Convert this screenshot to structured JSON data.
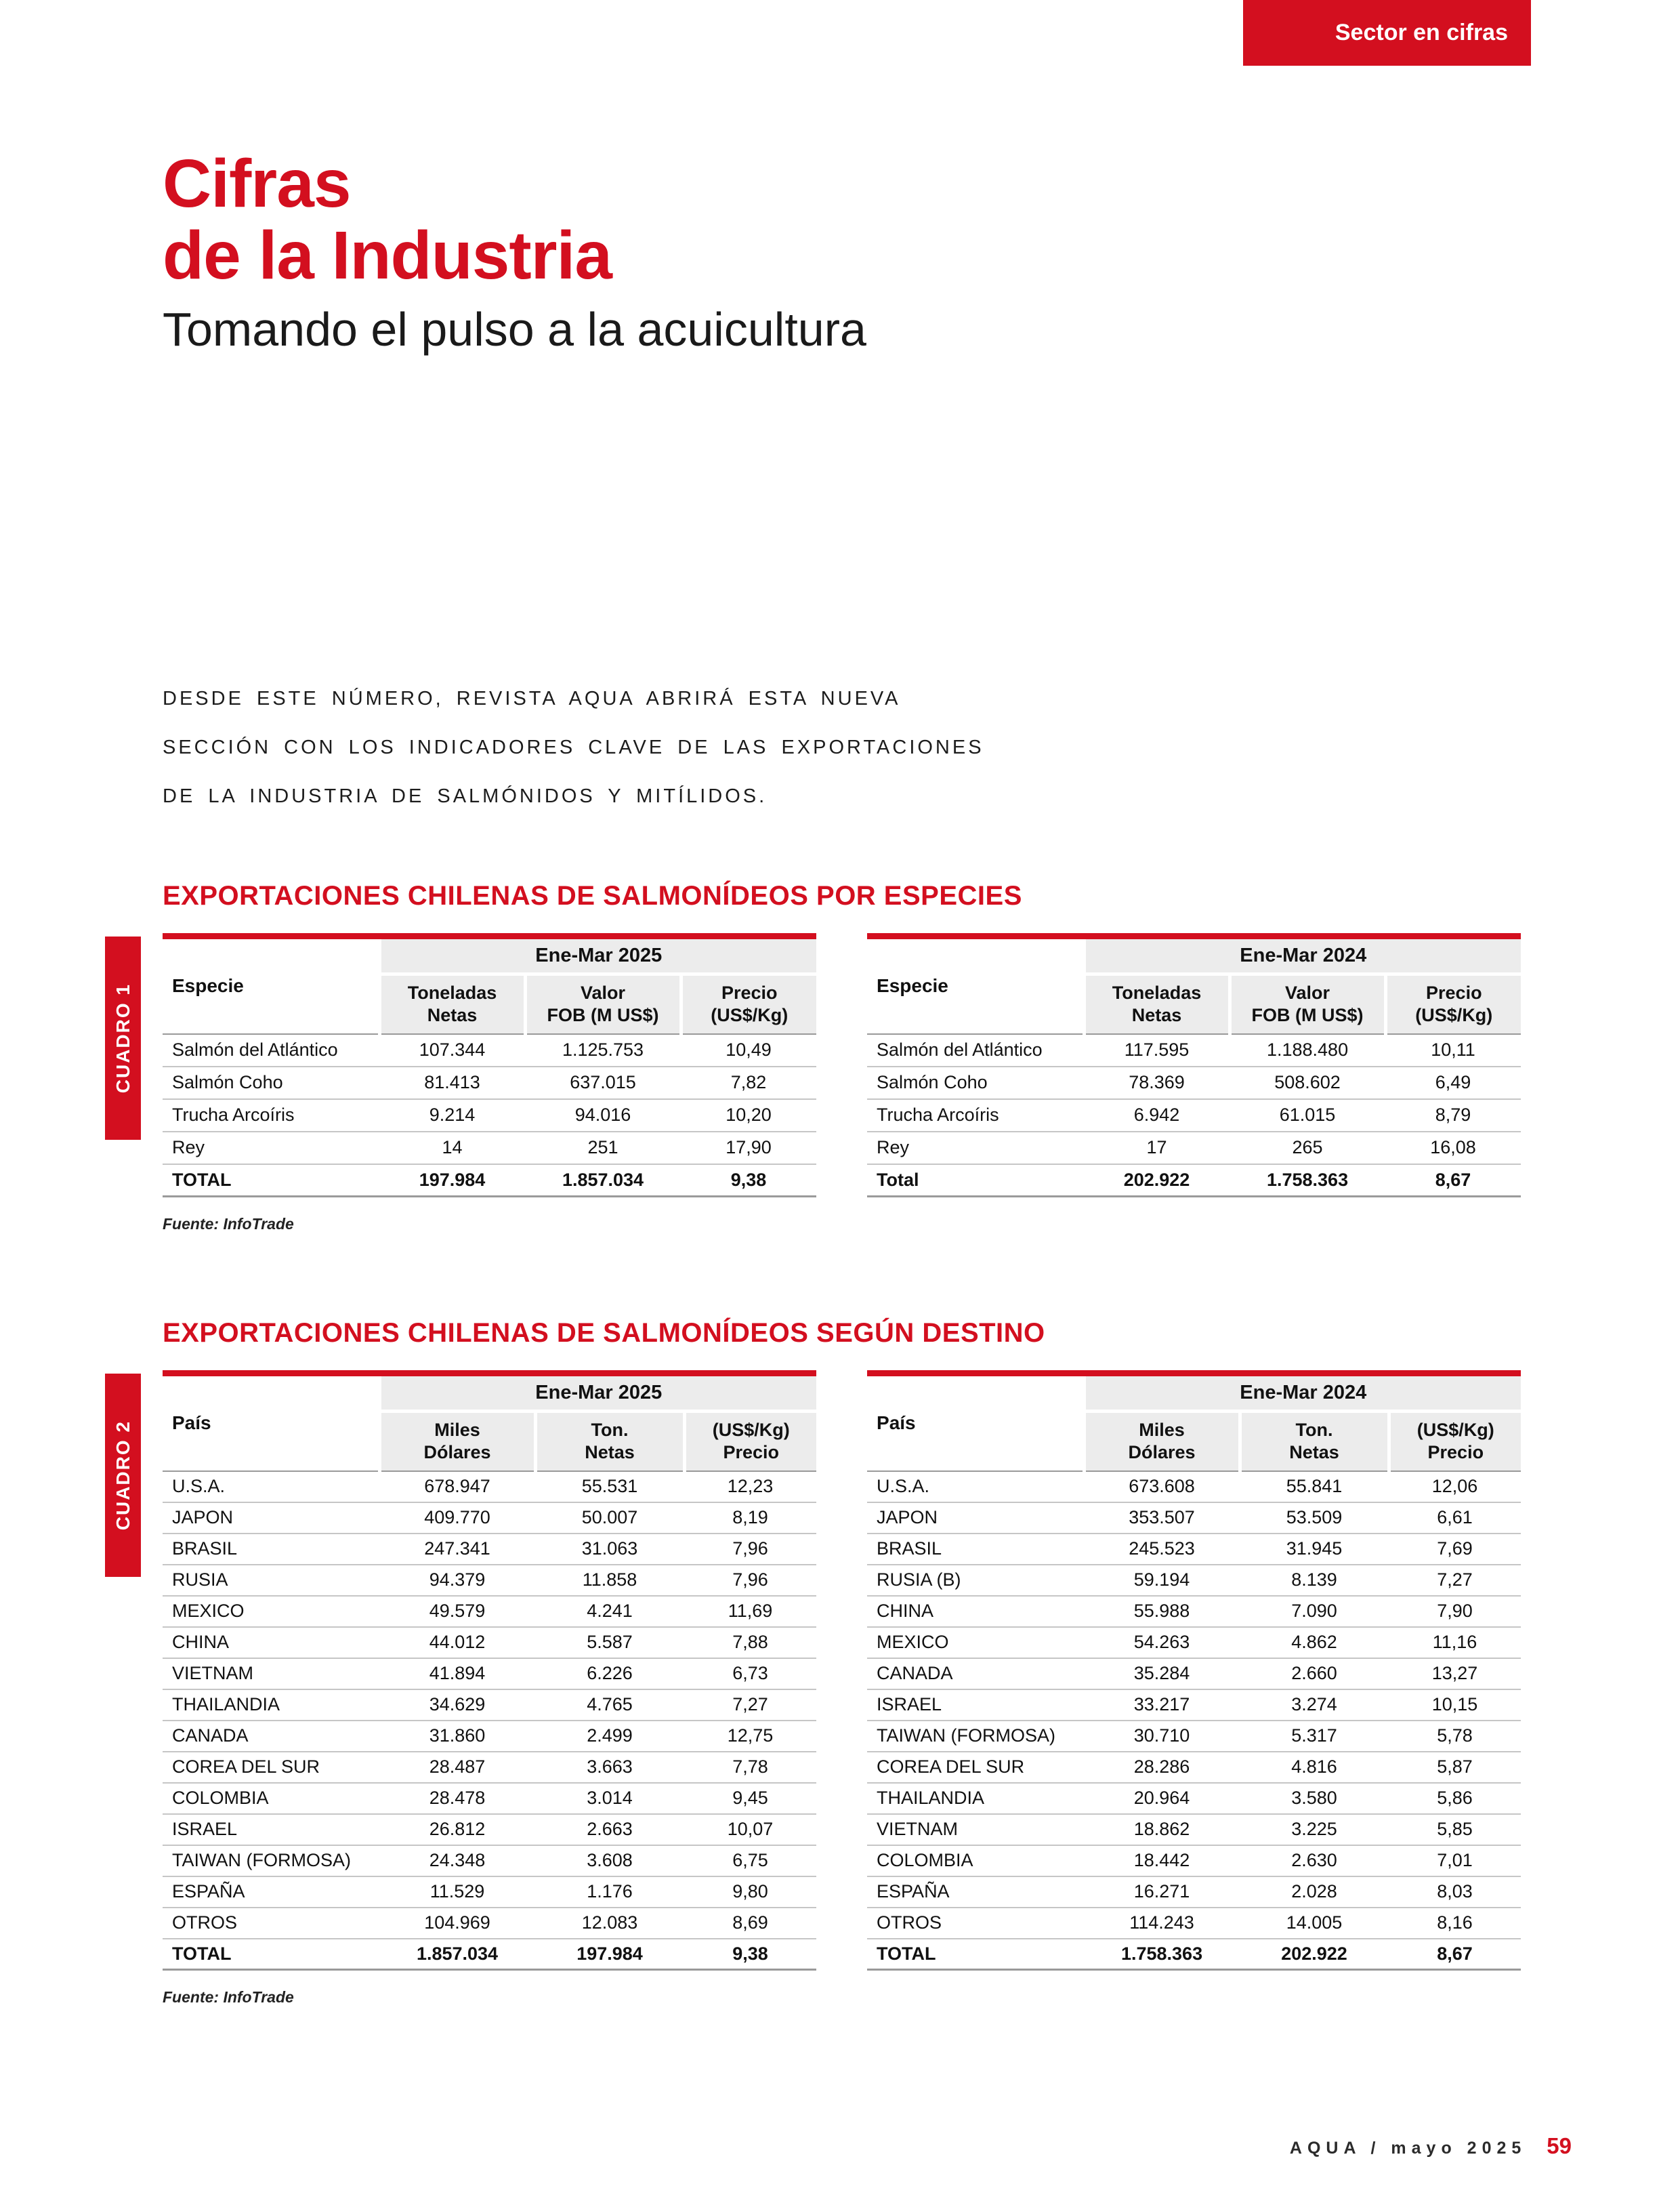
{
  "colors": {
    "accent": "#d30f1f",
    "header_bg": "#ececec"
  },
  "page": {
    "badge": "Sector en cifras",
    "title_line1": "Cifras",
    "title_line2": "de la Industria",
    "subtitle": "Tomando el pulso a la acuicultura",
    "intro_lines": [
      "DESDE ESTE NÚMERO, REVISTA AQUA ABRIRÁ ESTA NUEVA",
      "SECCIÓN CON LOS INDICADORES CLAVE DE LAS EXPORTACIONES",
      "DE LA INDUSTRIA DE SALMÓNIDOS Y MITÍLIDOS."
    ],
    "footer_issue": "AQUA / mayo 2025",
    "footer_page": "59"
  },
  "cuadro1": {
    "tab_label": "CUADRO 1",
    "heading": "EXPORTACIONES CHILENAS DE SALMONÍDEOS POR ESPECIES",
    "source": "Fuente: InfoTrade",
    "tables": [
      {
        "period": "Ene-Mar 2025",
        "label_col": "Especie",
        "columns": [
          "Toneladas\nNetas",
          "Valor\nFOB (M US$)",
          "Precio\n(US$/Kg)"
        ],
        "rows": [
          {
            "cells": [
              "Salmón del Atlántico",
              "107.344",
              "1.125.753",
              "10,49"
            ],
            "bold": false
          },
          {
            "cells": [
              "Salmón Coho",
              "81.413",
              "637.015",
              "7,82"
            ],
            "bold": false
          },
          {
            "cells": [
              "Trucha Arcoíris",
              "9.214",
              "94.016",
              "10,20"
            ],
            "bold": false
          },
          {
            "cells": [
              "Rey",
              "14",
              "251",
              "17,90"
            ],
            "bold": false
          },
          {
            "cells": [
              "TOTAL",
              "197.984",
              "1.857.034",
              "9,38"
            ],
            "bold": true
          }
        ]
      },
      {
        "period": "Ene-Mar 2024",
        "label_col": "Especie",
        "columns": [
          "Toneladas\nNetas",
          "Valor\nFOB (M US$)",
          "Precio\n(US$/Kg)"
        ],
        "rows": [
          {
            "cells": [
              "Salmón del Atlántico",
              "117.595",
              "1.188.480",
              "10,11"
            ],
            "bold": false
          },
          {
            "cells": [
              "Salmón Coho",
              "78.369",
              "508.602",
              "6,49"
            ],
            "bold": false
          },
          {
            "cells": [
              "Trucha Arcoíris",
              "6.942",
              "61.015",
              "8,79"
            ],
            "bold": false
          },
          {
            "cells": [
              "Rey",
              "17",
              "265",
              "16,08"
            ],
            "bold": false
          },
          {
            "cells": [
              "Total",
              "202.922",
              "1.758.363",
              "8,67"
            ],
            "bold": true
          }
        ]
      }
    ]
  },
  "cuadro2": {
    "tab_label": "CUADRO 2",
    "heading": "EXPORTACIONES CHILENAS DE SALMONÍDEOS SEGÚN DESTINO",
    "source": "Fuente: InfoTrade",
    "tables": [
      {
        "period": "Ene-Mar 2025",
        "label_col": "País",
        "columns": [
          "Miles\nDólares",
          "Ton.\nNetas",
          "(US$/Kg)\nPrecio"
        ],
        "rows": [
          {
            "cells": [
              "U.S.A.",
              "678.947",
              "55.531",
              "12,23"
            ],
            "bold": false
          },
          {
            "cells": [
              "JAPON",
              "409.770",
              "50.007",
              "8,19"
            ],
            "bold": false
          },
          {
            "cells": [
              "BRASIL",
              "247.341",
              "31.063",
              "7,96"
            ],
            "bold": false
          },
          {
            "cells": [
              "RUSIA",
              "94.379",
              "11.858",
              "7,96"
            ],
            "bold": false
          },
          {
            "cells": [
              "MEXICO",
              "49.579",
              "4.241",
              "11,69"
            ],
            "bold": false
          },
          {
            "cells": [
              "CHINA",
              "44.012",
              "5.587",
              "7,88"
            ],
            "bold": false
          },
          {
            "cells": [
              "VIETNAM",
              "41.894",
              "6.226",
              "6,73"
            ],
            "bold": false
          },
          {
            "cells": [
              "THAILANDIA",
              "34.629",
              "4.765",
              "7,27"
            ],
            "bold": false
          },
          {
            "cells": [
              "CANADA",
              "31.860",
              "2.499",
              "12,75"
            ],
            "bold": false
          },
          {
            "cells": [
              "COREA DEL SUR",
              "28.487",
              "3.663",
              "7,78"
            ],
            "bold": false
          },
          {
            "cells": [
              "COLOMBIA",
              "28.478",
              "3.014",
              "9,45"
            ],
            "bold": false
          },
          {
            "cells": [
              "ISRAEL",
              "26.812",
              "2.663",
              "10,07"
            ],
            "bold": false
          },
          {
            "cells": [
              "TAIWAN (FORMOSA)",
              "24.348",
              "3.608",
              "6,75"
            ],
            "bold": false
          },
          {
            "cells": [
              "ESPAÑA",
              "11.529",
              "1.176",
              "9,80"
            ],
            "bold": false
          },
          {
            "cells": [
              "OTROS",
              "104.969",
              "12.083",
              "8,69"
            ],
            "bold": false
          },
          {
            "cells": [
              "TOTAL",
              "1.857.034",
              "197.984",
              "9,38"
            ],
            "bold": true
          }
        ]
      },
      {
        "period": "Ene-Mar 2024",
        "label_col": "País",
        "columns": [
          "Miles\nDólares",
          "Ton.\nNetas",
          "(US$/Kg)\nPrecio"
        ],
        "rows": [
          {
            "cells": [
              "U.S.A.",
              "673.608",
              "55.841",
              "12,06"
            ],
            "bold": false
          },
          {
            "cells": [
              "JAPON",
              "353.507",
              "53.509",
              "6,61"
            ],
            "bold": false
          },
          {
            "cells": [
              "BRASIL",
              "245.523",
              "31.945",
              "7,69"
            ],
            "bold": false
          },
          {
            "cells": [
              "RUSIA (B)",
              "59.194",
              "8.139",
              "7,27"
            ],
            "bold": false
          },
          {
            "cells": [
              "CHINA",
              "55.988",
              "7.090",
              "7,90"
            ],
            "bold": false
          },
          {
            "cells": [
              "MEXICO",
              "54.263",
              "4.862",
              "11,16"
            ],
            "bold": false
          },
          {
            "cells": [
              "CANADA",
              "35.284",
              "2.660",
              "13,27"
            ],
            "bold": false
          },
          {
            "cells": [
              "ISRAEL",
              "33.217",
              "3.274",
              "10,15"
            ],
            "bold": false
          },
          {
            "cells": [
              "TAIWAN (FORMOSA)",
              "30.710",
              "5.317",
              "5,78"
            ],
            "bold": false
          },
          {
            "cells": [
              "COREA DEL SUR",
              "28.286",
              "4.816",
              "5,87"
            ],
            "bold": false
          },
          {
            "cells": [
              "THAILANDIA",
              "20.964",
              "3.580",
              "5,86"
            ],
            "bold": false
          },
          {
            "cells": [
              "VIETNAM",
              "18.862",
              "3.225",
              "5,85"
            ],
            "bold": false
          },
          {
            "cells": [
              "COLOMBIA",
              "18.442",
              "2.630",
              "7,01"
            ],
            "bold": false
          },
          {
            "cells": [
              "ESPAÑA",
              "16.271",
              "2.028",
              "8,03"
            ],
            "bold": false
          },
          {
            "cells": [
              "OTROS",
              "114.243",
              "14.005",
              "8,16"
            ],
            "bold": false
          },
          {
            "cells": [
              "TOTAL",
              "1.758.363",
              "202.922",
              "8,67"
            ],
            "bold": true
          }
        ]
      }
    ]
  }
}
